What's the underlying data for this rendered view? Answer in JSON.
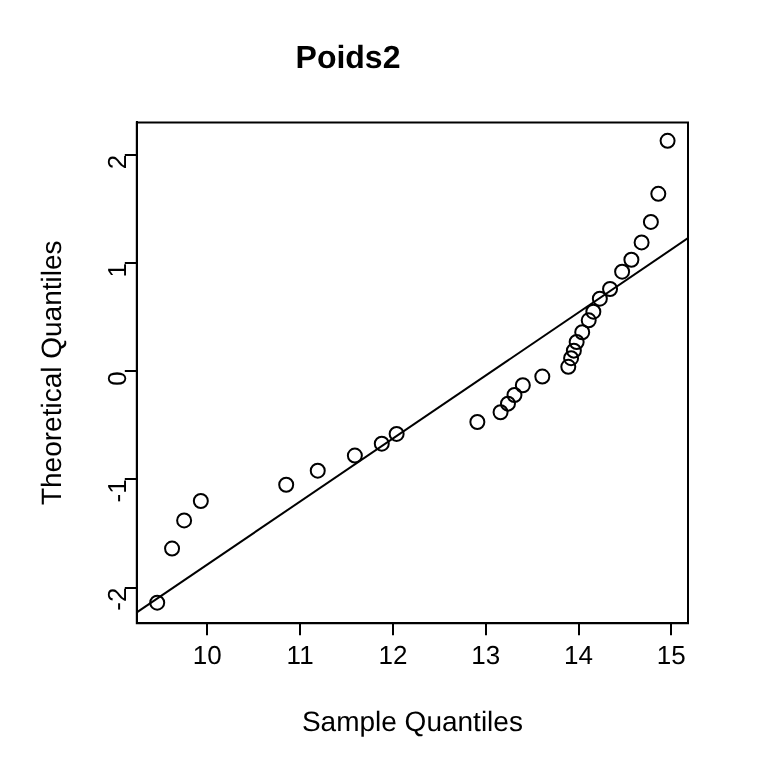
{
  "chart_data": {
    "type": "scatter",
    "title": "Poids2",
    "xlabel": "Sample Quantiles",
    "ylabel": "Theoretical Quantiles",
    "xlim": [
      9.24,
      15.18
    ],
    "xticks": [
      10,
      11,
      12,
      13,
      14,
      15
    ],
    "ylim": [
      -2.33,
      2.3
    ],
    "yticks": [
      -2,
      -1,
      0,
      1,
      2
    ],
    "grid": false,
    "legend": false,
    "series": [
      {
        "marker": "circle",
        "color": "#000000",
        "x": [
          9.46,
          9.62,
          9.75,
          9.93,
          10.85,
          11.19,
          11.59,
          11.88,
          12.04,
          12.91,
          13.16,
          13.24,
          13.31,
          13.4,
          13.61,
          13.89,
          13.92,
          13.95,
          13.98,
          14.04,
          14.11,
          14.16,
          14.23,
          14.34,
          14.47,
          14.57,
          14.68,
          14.78,
          14.86,
          14.96
        ],
        "values": [
          -2.14,
          -1.64,
          -1.38,
          -1.2,
          -1.05,
          -0.92,
          -0.78,
          -0.67,
          -0.58,
          -0.47,
          -0.38,
          -0.3,
          -0.22,
          -0.13,
          -0.05,
          0.04,
          0.12,
          0.19,
          0.27,
          0.36,
          0.47,
          0.55,
          0.67,
          0.76,
          0.92,
          1.03,
          1.19,
          1.38,
          1.64,
          2.13
        ]
      },
      {
        "type": "line",
        "color": "#000000",
        "line_style": "solid",
        "x": [
          9.24,
          15.18
        ],
        "values": [
          -2.23,
          1.23
        ]
      }
    ]
  }
}
